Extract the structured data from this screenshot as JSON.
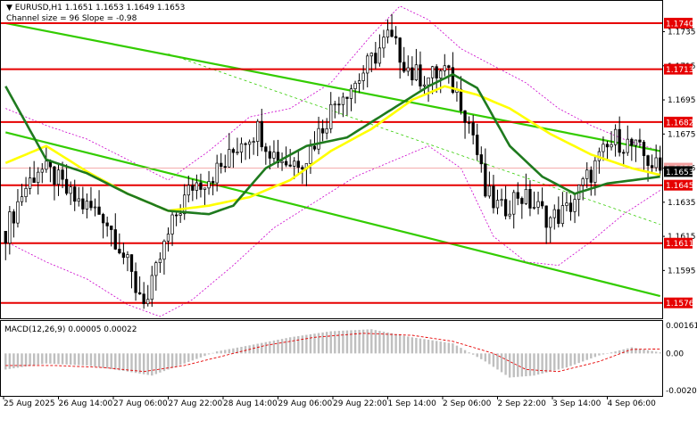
{
  "header": {
    "line1": "EURUSD,H1  1.1651 1.1653 1.1649 1.1653",
    "line2": "Channel size = 96 Slope = -0.98",
    "marker": "▼"
  },
  "macd": {
    "label": "MACD(12,26,9) 0.00005 0.00022",
    "scale_labels": [
      "0.00161",
      "0.00",
      "-0.00202"
    ]
  },
  "colors": {
    "background": "#ffffff",
    "candles": "#000000",
    "level_lines": "#e60000",
    "ma_fast": "#ffff00",
    "ma_slow": "#1e7a1e",
    "channel": "#33cc00",
    "bollinger": "#cc00cc",
    "macd_hist": "#bfbfbf",
    "macd_signal": "#e60000"
  },
  "chart_data": {
    "type": "candlestick",
    "symbol": "EURUSD",
    "timeframe": "H1",
    "ohlc_last": {
      "open": 1.1651,
      "high": 1.1653,
      "low": 1.1649,
      "close": 1.1653
    },
    "ylim": [
      1.1568,
      1.1752
    ],
    "yticks": [
      1.1595,
      1.1615,
      1.1635,
      1.1655,
      1.1675,
      1.1695,
      1.1715,
      1.1735
    ],
    "xticks": [
      "25 Aug 2025",
      "26 Aug 14:00",
      "27 Aug 06:00",
      "27 Aug 22:00",
      "28 Aug 14:00",
      "29 Aug 06:00",
      "29 Aug 22:00",
      "1 Sep 14:00",
      "2 Sep 06:00",
      "2 Sep 22:00",
      "3 Sep 14:00",
      "4 Sep 06:00"
    ],
    "current_price": 1.1653,
    "levels": [
      1.174,
      1.1713,
      1.1682,
      1.1645,
      1.1611,
      1.1576
    ],
    "highlighted_level": 1.1655,
    "close_anchors": [
      [
        0,
        1.1618
      ],
      [
        4,
        1.164
      ],
      [
        8,
        1.1655
      ],
      [
        12,
        1.165
      ],
      [
        16,
        1.1638
      ],
      [
        20,
        1.1632
      ],
      [
        24,
        1.1628
      ],
      [
        28,
        1.161
      ],
      [
        32,
        1.1585
      ],
      [
        35,
        1.1577
      ],
      [
        38,
        1.1602
      ],
      [
        42,
        1.1628
      ],
      [
        46,
        1.1645
      ],
      [
        50,
        1.165
      ],
      [
        54,
        1.1657
      ],
      [
        58,
        1.1672
      ],
      [
        62,
        1.1678
      ],
      [
        66,
        1.1663
      ],
      [
        70,
        1.1658
      ],
      [
        74,
        1.1662
      ],
      [
        78,
        1.168
      ],
      [
        82,
        1.1698
      ],
      [
        86,
        1.1705
      ],
      [
        90,
        1.1718
      ],
      [
        94,
        1.1732
      ],
      [
        97,
        1.1722
      ],
      [
        100,
        1.171
      ],
      [
        104,
        1.1708
      ],
      [
        108,
        1.1712
      ],
      [
        112,
        1.1695
      ],
      [
        115,
        1.1675
      ],
      [
        118,
        1.164
      ],
      [
        122,
        1.163
      ],
      [
        126,
        1.164
      ],
      [
        130,
        1.1633
      ],
      [
        134,
        1.1625
      ],
      [
        138,
        1.163
      ],
      [
        142,
        1.1645
      ],
      [
        146,
        1.166
      ],
      [
        150,
        1.1672
      ],
      [
        154,
        1.1668
      ],
      [
        158,
        1.166
      ],
      [
        161,
        1.1653
      ]
    ],
    "series": [
      {
        "name": "MA fast",
        "anchors": [
          [
            0,
            1.1658
          ],
          [
            10,
            1.1668
          ],
          [
            20,
            1.1653
          ],
          [
            30,
            1.164
          ],
          [
            40,
            1.163
          ],
          [
            50,
            1.1633
          ],
          [
            60,
            1.1638
          ],
          [
            70,
            1.1648
          ],
          [
            80,
            1.1665
          ],
          [
            90,
            1.1678
          ],
          [
            100,
            1.1695
          ],
          [
            108,
            1.1703
          ],
          [
            116,
            1.1698
          ],
          [
            124,
            1.169
          ],
          [
            134,
            1.1675
          ],
          [
            144,
            1.1663
          ],
          [
            154,
            1.1655
          ],
          [
            161,
            1.1651
          ]
        ]
      },
      {
        "name": "MA slow",
        "anchors": [
          [
            0,
            1.1703
          ],
          [
            10,
            1.166
          ],
          [
            20,
            1.1652
          ],
          [
            30,
            1.164
          ],
          [
            40,
            1.163
          ],
          [
            50,
            1.1628
          ],
          [
            56,
            1.1633
          ],
          [
            64,
            1.1655
          ],
          [
            74,
            1.1668
          ],
          [
            84,
            1.1673
          ],
          [
            94,
            1.1688
          ],
          [
            104,
            1.1703
          ],
          [
            110,
            1.171
          ],
          [
            116,
            1.1702
          ],
          [
            124,
            1.1668
          ],
          [
            132,
            1.165
          ],
          [
            140,
            1.164
          ],
          [
            148,
            1.1646
          ],
          [
            161,
            1.165
          ]
        ]
      },
      {
        "name": "Bollinger upper",
        "anchors": [
          [
            0,
            1.169
          ],
          [
            10,
            1.168
          ],
          [
            20,
            1.1672
          ],
          [
            30,
            1.166
          ],
          [
            40,
            1.1648
          ],
          [
            50,
            1.1665
          ],
          [
            60,
            1.1685
          ],
          [
            70,
            1.169
          ],
          [
            80,
            1.1705
          ],
          [
            90,
            1.1733
          ],
          [
            97,
            1.175
          ],
          [
            104,
            1.1742
          ],
          [
            112,
            1.1725
          ],
          [
            120,
            1.1715
          ],
          [
            128,
            1.1705
          ],
          [
            136,
            1.169
          ],
          [
            144,
            1.168
          ],
          [
            152,
            1.1672
          ],
          [
            161,
            1.1665
          ]
        ]
      },
      {
        "name": "Bollinger lower",
        "anchors": [
          [
            0,
            1.1612
          ],
          [
            10,
            1.16
          ],
          [
            20,
            1.159
          ],
          [
            30,
            1.1575
          ],
          [
            38,
            1.1568
          ],
          [
            46,
            1.1578
          ],
          [
            56,
            1.1598
          ],
          [
            66,
            1.162
          ],
          [
            76,
            1.1635
          ],
          [
            86,
            1.165
          ],
          [
            96,
            1.166
          ],
          [
            104,
            1.1668
          ],
          [
            112,
            1.1655
          ],
          [
            120,
            1.1615
          ],
          [
            128,
            1.16
          ],
          [
            136,
            1.1598
          ],
          [
            144,
            1.1612
          ],
          [
            152,
            1.1628
          ],
          [
            161,
            1.1642
          ]
        ]
      },
      {
        "name": "channel top",
        "anchors": [
          [
            0,
            1.174
          ],
          [
            161,
            1.1665
          ]
        ]
      },
      {
        "name": "channel bottom",
        "anchors": [
          [
            0,
            1.1676
          ],
          [
            161,
            1.158
          ]
        ]
      },
      {
        "name": "channel mid",
        "anchors": [
          [
            40,
            1.1722
          ],
          [
            161,
            1.1622
          ]
        ]
      }
    ],
    "macd": {
      "macd_value": 5e-05,
      "signal_value": 0.00022,
      "ylim": [
        -0.00202,
        0.00161
      ],
      "hist_anchors": [
        [
          0,
          -0.0008
        ],
        [
          10,
          -0.0005
        ],
        [
          20,
          -0.0006
        ],
        [
          30,
          -0.0009
        ],
        [
          36,
          -0.0011
        ],
        [
          44,
          -0.0005
        ],
        [
          52,
          0.0001
        ],
        [
          60,
          0.0004
        ],
        [
          70,
          0.0008
        ],
        [
          80,
          0.0011
        ],
        [
          90,
          0.0012
        ],
        [
          100,
          0.0008
        ],
        [
          110,
          0.0005
        ],
        [
          118,
          -0.0004
        ],
        [
          124,
          -0.0012
        ],
        [
          130,
          -0.0011
        ],
        [
          138,
          -0.0007
        ],
        [
          146,
          -0.0001
        ],
        [
          154,
          0.0003
        ],
        [
          161,
          5e-05
        ]
      ],
      "signal_anchors": [
        [
          0,
          -0.0006
        ],
        [
          12,
          -0.0006
        ],
        [
          24,
          -0.0007
        ],
        [
          34,
          -0.0009
        ],
        [
          44,
          -0.0006
        ],
        [
          54,
          -0.0001
        ],
        [
          64,
          0.0004
        ],
        [
          76,
          0.0008
        ],
        [
          88,
          0.001
        ],
        [
          100,
          0.0009
        ],
        [
          110,
          0.0006
        ],
        [
          120,
          0.0
        ],
        [
          128,
          -0.0008
        ],
        [
          136,
          -0.0009
        ],
        [
          146,
          -0.0004
        ],
        [
          154,
          0.0002
        ],
        [
          161,
          0.00022
        ]
      ]
    }
  }
}
